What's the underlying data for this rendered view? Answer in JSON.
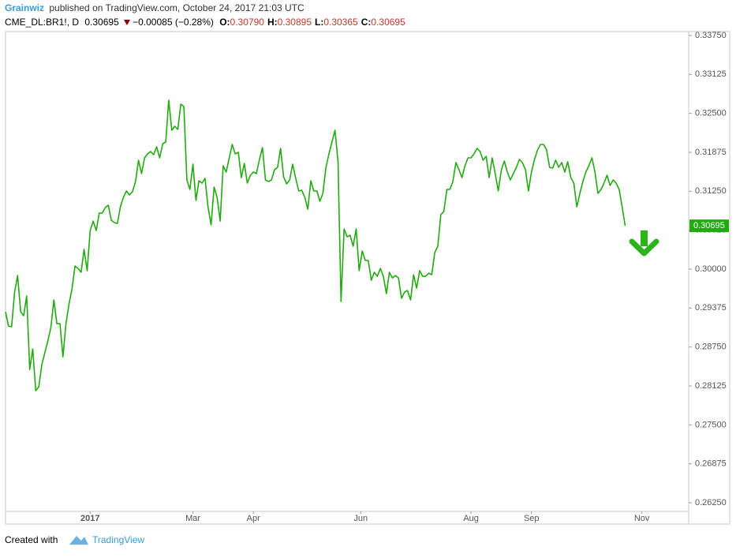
{
  "header": {
    "author": "Grainwiz",
    "published": "published on TradingView.com, October 24, 2017 21:03 UTC",
    "symbol": "CME_DL:BR1!, D",
    "last": "0.30695",
    "change": "−0.00085 (−0.28%)",
    "ohlc": [
      {
        "label": "O:",
        "value": "0.30790"
      },
      {
        "label": "H:",
        "value": "0.30895"
      },
      {
        "label": "L:",
        "value": "0.30365"
      },
      {
        "label": "C:",
        "value": "0.30695"
      }
    ]
  },
  "chart_data": {
    "type": "line",
    "color": "#22aa11",
    "values": [
      0.29315,
      0.29087,
      0.29075,
      0.29632,
      0.29898,
      0.29315,
      0.29252,
      0.29569,
      0.2839,
      0.2872,
      0.28048,
      0.28112,
      0.28466,
      0.28657,
      0.28847,
      0.29062,
      0.29505,
      0.29125,
      0.29125,
      0.28593,
      0.29125,
      0.29442,
      0.29683,
      0.3005,
      0.30012,
      0.29949,
      0.30316,
      0.29974,
      0.3062,
      0.30772,
      0.3062,
      0.30899,
      0.30899,
      0.30988,
      0.31026,
      0.30785,
      0.30747,
      0.30734,
      0.31,
      0.31152,
      0.31254,
      0.31191,
      0.31241,
      0.31406,
      0.31748,
      0.31533,
      0.31786,
      0.31849,
      0.31887,
      0.31837,
      0.31963,
      0.31786,
      0.32014,
      0.32039,
      0.32711,
      0.32229,
      0.32293,
      0.32242,
      0.32648,
      0.3261,
      0.31431,
      0.31279,
      0.31685,
      0.31102,
      0.31419,
      0.31381,
      0.31457,
      0.31,
      0.30709,
      0.31317,
      0.31152,
      0.30772,
      0.31659,
      0.31558,
      0.31786,
      0.32001,
      0.31849,
      0.31875,
      0.31469,
      0.31697,
      0.31381,
      0.31507,
      0.31558,
      0.31533,
      0.31761,
      0.31951,
      0.31431,
      0.31406,
      0.31431,
      0.31596,
      0.31634,
      0.31938,
      0.31482,
      0.31368,
      0.31431,
      0.31685,
      0.31457,
      0.31254,
      0.31267,
      0.31152,
      0.30962,
      0.31419,
      0.31254,
      0.31254,
      0.31089,
      0.31216,
      0.31634,
      0.31849,
      0.32039,
      0.32229,
      0.31723,
      0.2948,
      0.30646,
      0.30519,
      0.30544,
      0.30367,
      0.30646,
      0.29976,
      0.30291,
      0.30139,
      0.30139,
      0.29822,
      0.29949,
      0.29885,
      0.30012,
      0.29885,
      0.29607,
      0.29949,
      0.2986,
      0.29898,
      0.2986,
      0.29531,
      0.29632,
      0.29657,
      0.29505,
      0.29911,
      0.29695,
      0.29976,
      0.29885,
      0.29885,
      0.29936,
      0.29911,
      0.30266,
      0.30367,
      0.30874,
      0.30924,
      0.31279,
      0.31279,
      0.31406,
      0.3171,
      0.31596,
      0.31469,
      0.31659,
      0.31786,
      0.31786,
      0.31849,
      0.31938,
      0.31887,
      0.31748,
      0.31811,
      0.31469,
      0.31786,
      0.31533,
      0.31254,
      0.31583,
      0.31735,
      0.31558,
      0.31431,
      0.31533,
      0.31634,
      0.31761,
      0.3171,
      0.31596,
      0.31254,
      0.31558,
      0.31761,
      0.31913,
      0.32001,
      0.32001,
      0.31913,
      0.31634,
      0.31621,
      0.31748,
      0.31634,
      0.3171,
      0.31558,
      0.31723,
      0.31469,
      0.31381,
      0.31,
      0.31216,
      0.31406,
      0.31558,
      0.31659,
      0.31786,
      0.31558,
      0.31216,
      0.31279,
      0.31381,
      0.31507,
      0.31343,
      0.31431,
      0.31381,
      0.31279,
      0.31,
      0.30695
    ],
    "xlim": [
      0,
      226
    ],
    "xticks": [
      {
        "value": 28,
        "label": "2017"
      },
      {
        "value": 62,
        "label": "Mar"
      },
      {
        "value": 82,
        "label": "Apr"
      },
      {
        "value": 117.5,
        "label": "Jun"
      },
      {
        "value": 154,
        "label": "Aug"
      },
      {
        "value": 174,
        "label": "Sep"
      },
      {
        "value": 210.5,
        "label": "Nov"
      }
    ],
    "ylim": [
      0.26111,
      0.33813
    ],
    "yticks": [
      {
        "value": 0.3375,
        "label": "0.33750"
      },
      {
        "value": 0.33125,
        "label": "0.33125"
      },
      {
        "value": 0.325,
        "label": "0.32500"
      },
      {
        "value": 0.31875,
        "label": "0.31875"
      },
      {
        "value": 0.3125,
        "label": "0.31250"
      },
      {
        "value": 0.30625,
        "label": "0.30625"
      },
      {
        "value": 0.3,
        "label": "0.30000"
      },
      {
        "value": 0.29375,
        "label": "0.29375"
      },
      {
        "value": 0.2875,
        "label": "0.28750"
      },
      {
        "value": 0.28125,
        "label": "0.28125"
      },
      {
        "value": 0.275,
        "label": "0.27500"
      },
      {
        "value": 0.26875,
        "label": "0.26875"
      },
      {
        "value": 0.2625,
        "label": "0.26250"
      }
    ],
    "last_price": {
      "value": 0.30695,
      "label": "0.30695"
    }
  },
  "footer": {
    "created": "Created with",
    "brand": "TradingView"
  }
}
